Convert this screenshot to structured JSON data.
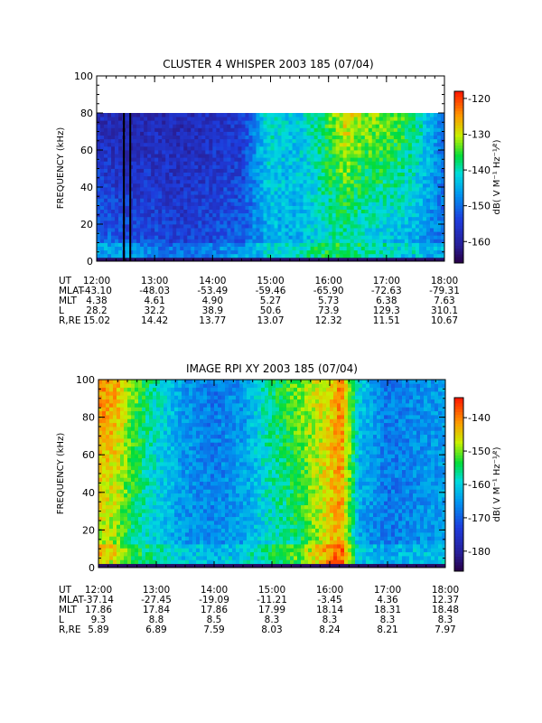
{
  "chart_data": [
    {
      "type": "heatmap",
      "title": "CLUSTER 4 WHISPER 2003 185 (07/04)",
      "ylabel": "FREQUENCY (kHz)",
      "ylim": [
        0,
        100
      ],
      "yticks": [
        "0",
        "20",
        "40",
        "60",
        "80",
        "100"
      ],
      "data_fmax": 80,
      "x_hours": [
        12,
        18
      ],
      "xticks": [
        "12:00",
        "13:00",
        "14:00",
        "15:00",
        "16:00",
        "17:00",
        "18:00"
      ],
      "colorbar": {
        "label": "dB( V M⁻¹ Hz⁻¹⁄²)",
        "range": [
          -166,
          -118
        ],
        "ticks": [
          "-120",
          "-130",
          "-140",
          "-150",
          "-160"
        ],
        "tick_values": [
          -120,
          -130,
          -140,
          -150,
          -160
        ]
      },
      "intensity_profile": {
        "hours": [
          12.0,
          12.5,
          13.0,
          13.5,
          14.0,
          14.5,
          14.8,
          15.0,
          15.3,
          15.6,
          16.0,
          16.3,
          16.6,
          17.0,
          17.3,
          17.6,
          18.0
        ],
        "upper_band_db": [
          -158,
          -160,
          -158,
          -159,
          -157,
          -156,
          -145,
          -140,
          -143,
          -142,
          -135,
          -128,
          -132,
          -133,
          -135,
          -140,
          -150
        ],
        "lower_band_db": [
          -148,
          -150,
          -152,
          -153,
          -152,
          -150,
          -148,
          -146,
          -146,
          -144,
          -142,
          -143,
          -145,
          -146,
          -147,
          -148,
          -150
        ]
      },
      "vertical_lines_hours": [
        12.47,
        12.58
      ],
      "ephemeris": {
        "labels": [
          "UT",
          "MLAT",
          "MLT",
          "L",
          "R,RE"
        ],
        "rows": [
          [
            "12:00",
            "13:00",
            "14:00",
            "15:00",
            "16:00",
            "17:00",
            "18:00"
          ],
          [
            "-43.10",
            "-48.03",
            "-53.49",
            "-59.46",
            "-65.90",
            "-72.63",
            "-79.31"
          ],
          [
            "4.38",
            "4.61",
            "4.90",
            "5.27",
            "5.73",
            "6.38",
            "7.63"
          ],
          [
            "28.2",
            "32.2",
            "38.9",
            "50.6",
            "73.9",
            "129.3",
            "310.1"
          ],
          [
            "15.02",
            "14.42",
            "13.77",
            "13.07",
            "12.32",
            "11.51",
            "10.67"
          ]
        ]
      }
    },
    {
      "type": "heatmap",
      "title": "IMAGE RPI XY 2003 185 (07/04)",
      "ylabel": "FREQUENCY (kHz)",
      "ylim": [
        0,
        100
      ],
      "yticks": [
        "0",
        "20",
        "40",
        "60",
        "80",
        "100"
      ],
      "data_fmax": 100,
      "x_hours": [
        12,
        18
      ],
      "xticks": [
        "12:00",
        "13:00",
        "14:00",
        "15:00",
        "16:00",
        "17:00",
        "18:00"
      ],
      "colorbar": {
        "label": "dB( V M⁻¹ Hz⁻¹⁄²)",
        "range": [
          -186,
          -134
        ],
        "ticks": [
          "-140",
          "-150",
          "-160",
          "-170",
          "-180"
        ],
        "tick_values": [
          -140,
          -150,
          -160,
          -170,
          -180
        ]
      },
      "intensity_profile": {
        "hours": [
          12.0,
          12.3,
          12.6,
          13.0,
          13.5,
          14.0,
          14.5,
          15.0,
          15.5,
          16.0,
          16.2,
          16.5,
          17.0,
          17.5,
          18.0
        ],
        "upper_band_db": [
          -140,
          -142,
          -150,
          -158,
          -165,
          -168,
          -165,
          -155,
          -150,
          -145,
          -140,
          -160,
          -168,
          -166,
          -165
        ],
        "lower_band_db": [
          -150,
          -152,
          -158,
          -162,
          -165,
          -166,
          -164,
          -160,
          -156,
          -145,
          -142,
          -165,
          -168,
          -166,
          -164
        ]
      },
      "ephemeris": {
        "labels": [
          "UT",
          "MLAT",
          "MLT",
          "L",
          "R,RE"
        ],
        "rows": [
          [
            "12:00",
            "13:00",
            "14:00",
            "15:00",
            "16:00",
            "17:00",
            "18:00"
          ],
          [
            "-37.14",
            "-27.45",
            "-19.09",
            "-11.21",
            "-3.45",
            "4.36",
            "12.37"
          ],
          [
            "17.86",
            "17.84",
            "17.86",
            "17.99",
            "18.14",
            "18.31",
            "18.48"
          ],
          [
            "9.3",
            "8.8",
            "8.5",
            "8.3",
            "8.3",
            "8.3",
            "8.3"
          ],
          [
            "5.89",
            "6.89",
            "7.59",
            "8.03",
            "8.24",
            "8.21",
            "7.97"
          ]
        ]
      }
    }
  ]
}
